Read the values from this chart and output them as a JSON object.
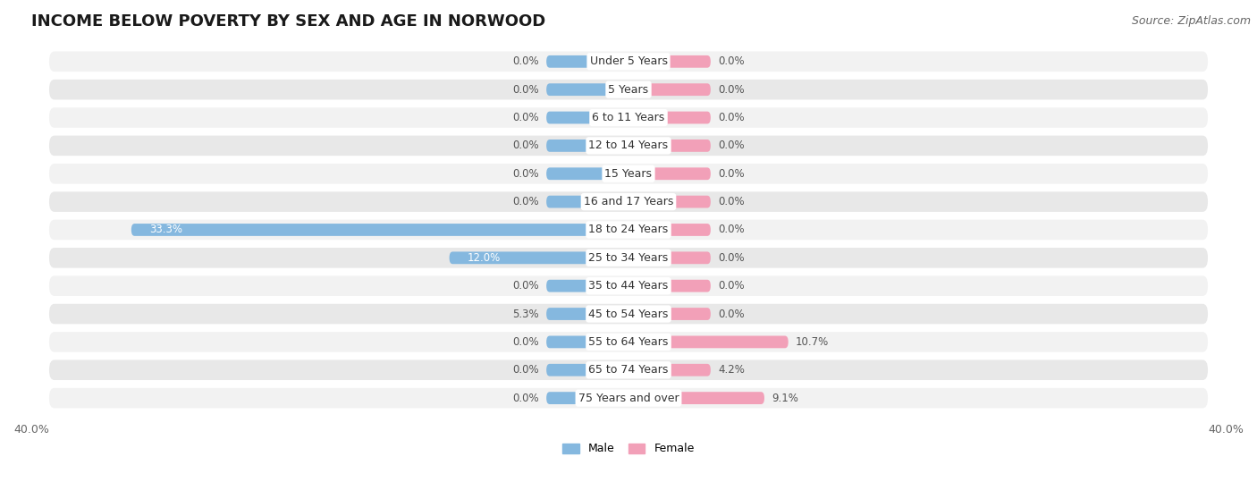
{
  "title": "INCOME BELOW POVERTY BY SEX AND AGE IN NORWOOD",
  "source": "Source: ZipAtlas.com",
  "categories": [
    "Under 5 Years",
    "5 Years",
    "6 to 11 Years",
    "12 to 14 Years",
    "15 Years",
    "16 and 17 Years",
    "18 to 24 Years",
    "25 to 34 Years",
    "35 to 44 Years",
    "45 to 54 Years",
    "55 to 64 Years",
    "65 to 74 Years",
    "75 Years and over"
  ],
  "male_values": [
    0.0,
    0.0,
    0.0,
    0.0,
    0.0,
    0.0,
    33.3,
    12.0,
    0.0,
    5.3,
    0.0,
    0.0,
    0.0
  ],
  "female_values": [
    0.0,
    0.0,
    0.0,
    0.0,
    0.0,
    0.0,
    0.0,
    0.0,
    0.0,
    0.0,
    10.7,
    4.2,
    9.1
  ],
  "male_color": "#85b8df",
  "female_color": "#f2a0b8",
  "male_label": "Male",
  "female_label": "Female",
  "x_max": 40.0,
  "stub_size": 5.5,
  "row_bg": "#efefef",
  "row_bg2": "#e6e6e6",
  "title_fontsize": 13,
  "source_fontsize": 9,
  "axis_label_fontsize": 9,
  "category_fontsize": 9,
  "value_label_fontsize": 8.5,
  "background_color": "#ffffff"
}
